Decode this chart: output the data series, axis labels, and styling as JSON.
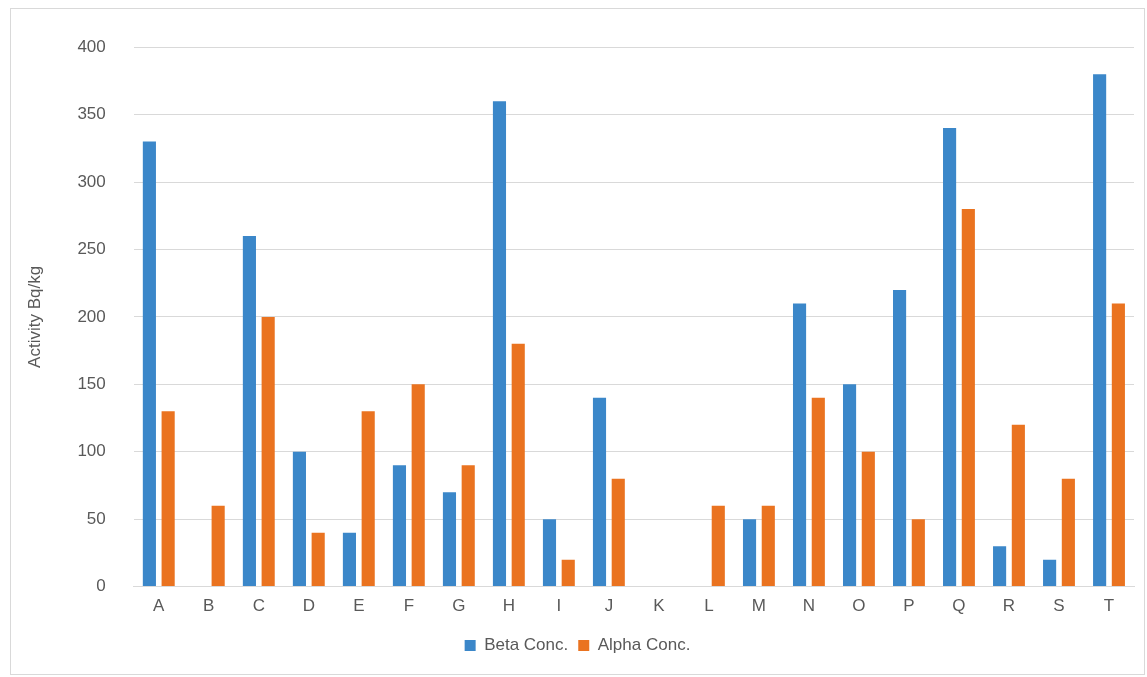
{
  "chart_data": {
    "type": "bar",
    "ylabel": "Activity Bq/kg",
    "categories": [
      "A",
      "B",
      "C",
      "D",
      "E",
      "F",
      "G",
      "H",
      "I",
      "J",
      "K",
      "L",
      "M",
      "N",
      "O",
      "P",
      "Q",
      "R",
      "S",
      "T"
    ],
    "series": [
      {
        "name": "Beta Conc.",
        "color": "#3b87c9",
        "values": [
          330,
          null,
          260,
          100,
          40,
          90,
          70,
          360,
          50,
          140,
          null,
          null,
          50,
          210,
          150,
          220,
          340,
          30,
          20,
          380
        ]
      },
      {
        "name": "Alpha Conc.",
        "color": "#ea7320",
        "values": [
          130,
          60,
          200,
          40,
          130,
          150,
          90,
          180,
          20,
          80,
          null,
          60,
          60,
          140,
          100,
          50,
          280,
          120,
          80,
          210
        ]
      }
    ],
    "ylim": [
      0,
      400
    ],
    "yticks": [
      0,
      50,
      100,
      150,
      200,
      250,
      300,
      350,
      400
    ],
    "grid": "y",
    "legend": "bottom"
  }
}
